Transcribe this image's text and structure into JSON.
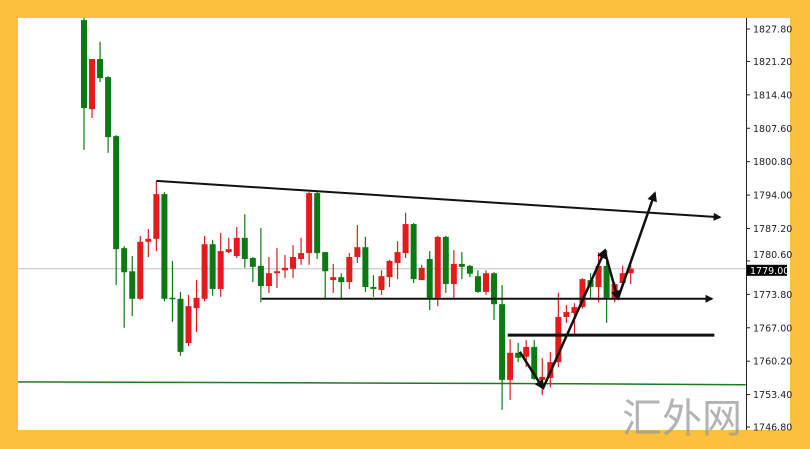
{
  "chart_data": {
    "type": "candlestick",
    "title": "",
    "xlabel": "",
    "ylabel": "",
    "ylim": [
      1745.5,
      1830.0
    ],
    "grid": false,
    "y_ticks": [
      "1827.80",
      "1821.20",
      "1814.40",
      "1807.60",
      "1800.80",
      "1794.00",
      "1787.20",
      "1780.60",
      "1773.80",
      "1767.00",
      "1760.20",
      "1753.40",
      "1746.80"
    ],
    "current_price": "1779.00",
    "colors": {
      "up": "#e31b1b",
      "down": "#0c7a12",
      "frame": "#FCBF3E",
      "level_line": "#1f7a1f",
      "current_line": "#c0c0c0",
      "annotation": "#111111"
    },
    "ohlc": [
      [
        1829.6,
        1831.0,
        1803.2,
        1811.7
      ],
      [
        1811.5,
        1821.7,
        1809.7,
        1821.7
      ],
      [
        1821.7,
        1825.2,
        1817.0,
        1817.8
      ],
      [
        1818.0,
        1818.2,
        1802.6,
        1805.8
      ],
      [
        1806.0,
        1806.2,
        1775.7,
        1783.0
      ],
      [
        1783.2,
        1783.6,
        1767.0,
        1778.3
      ],
      [
        1778.5,
        1781.6,
        1769.4,
        1772.9
      ],
      [
        1772.9,
        1785.7,
        1772.7,
        1784.5
      ],
      [
        1784.5,
        1787.1,
        1781.4,
        1785.1
      ],
      [
        1785.1,
        1796.9,
        1782.6,
        1794.2
      ],
      [
        1794.2,
        1794.6,
        1772.4,
        1772.9
      ],
      [
        1773.1,
        1780.6,
        1768.2,
        1772.9
      ],
      [
        1772.9,
        1774.3,
        1761.3,
        1762.1
      ],
      [
        1763.9,
        1773.7,
        1763.3,
        1771.4
      ],
      [
        1771.0,
        1776.7,
        1766.1,
        1773.1
      ],
      [
        1772.9,
        1785.7,
        1772.4,
        1784.0
      ],
      [
        1784.0,
        1784.9,
        1773.5,
        1774.9
      ],
      [
        1774.9,
        1786.3,
        1773.3,
        1782.6
      ],
      [
        1782.4,
        1785.3,
        1782.2,
        1783.0
      ],
      [
        1781.6,
        1787.5,
        1781.2,
        1785.3
      ],
      [
        1785.3,
        1790.1,
        1779.2,
        1781.0
      ],
      [
        1781.2,
        1781.4,
        1776.3,
        1779.4
      ],
      [
        1779.6,
        1787.3,
        1772.2,
        1775.5
      ],
      [
        1775.5,
        1781.4,
        1774.1,
        1778.1
      ],
      [
        1778.1,
        1783.2,
        1775.1,
        1778.5
      ],
      [
        1778.7,
        1781.8,
        1777.1,
        1779.2
      ],
      [
        1779.0,
        1783.8,
        1777.1,
        1781.4
      ],
      [
        1781.0,
        1785.3,
        1779.8,
        1782.2
      ],
      [
        1782.2,
        1794.6,
        1779.8,
        1794.4
      ],
      [
        1794.4,
        1794.6,
        1781.0,
        1782.2
      ],
      [
        1782.4,
        1782.4,
        1772.9,
        1778.5
      ],
      [
        1776.7,
        1780.0,
        1774.1,
        1777.3
      ],
      [
        1777.3,
        1778.1,
        1772.7,
        1776.3
      ],
      [
        1776.3,
        1782.2,
        1774.9,
        1781.4
      ],
      [
        1781.4,
        1787.9,
        1780.2,
        1783.4
      ],
      [
        1783.4,
        1785.5,
        1774.3,
        1775.3
      ],
      [
        1775.3,
        1777.7,
        1773.3,
        1774.9
      ],
      [
        1774.7,
        1778.7,
        1773.7,
        1777.5
      ],
      [
        1777.3,
        1780.8,
        1775.3,
        1780.6
      ],
      [
        1780.2,
        1784.6,
        1776.9,
        1782.4
      ],
      [
        1782.2,
        1790.4,
        1781.2,
        1788.1
      ],
      [
        1788.1,
        1788.3,
        1776.1,
        1776.9
      ],
      [
        1776.7,
        1779.8,
        1776.7,
        1779.2
      ],
      [
        1781.0,
        1782.6,
        1770.6,
        1773.1
      ],
      [
        1773.1,
        1785.7,
        1771.4,
        1785.5
      ],
      [
        1785.5,
        1785.7,
        1774.1,
        1775.9
      ],
      [
        1775.9,
        1782.8,
        1773.1,
        1780.0
      ],
      [
        1780.0,
        1782.4,
        1776.9,
        1779.4
      ],
      [
        1779.6,
        1779.8,
        1777.3,
        1778.0
      ],
      [
        1777.5,
        1778.7,
        1774.1,
        1774.3
      ],
      [
        1774.3,
        1778.7,
        1773.7,
        1778.1
      ],
      [
        1778.1,
        1778.3,
        1768.6,
        1771.8
      ],
      [
        1771.8,
        1775.7,
        1750.3,
        1756.4
      ],
      [
        1756.4,
        1764.7,
        1752.3,
        1761.9
      ],
      [
        1761.9,
        1763.9,
        1760.0,
        1760.9
      ],
      [
        1761.1,
        1764.5,
        1759.0,
        1763.1
      ],
      [
        1763.1,
        1764.5,
        1756.4,
        1756.6
      ],
      [
        1756.4,
        1760.8,
        1753.3,
        1757.0
      ],
      [
        1756.8,
        1762.1,
        1754.9,
        1760.0
      ],
      [
        1760.0,
        1774.1,
        1759.0,
        1769.2
      ],
      [
        1769.2,
        1771.6,
        1768.0,
        1770.2
      ],
      [
        1770.0,
        1772.0,
        1765.5,
        1771.2
      ],
      [
        1771.2,
        1777.1,
        1770.9,
        1776.9
      ],
      [
        1776.7,
        1778.1,
        1773.1,
        1775.3
      ],
      [
        1775.3,
        1782.4,
        1772.2,
        1779.6
      ],
      [
        1779.6,
        1782.8,
        1768.0,
        1773.1
      ],
      [
        1773.1,
        1776.3,
        1772.2,
        1775.9
      ],
      [
        1776.1,
        1779.6,
        1775.3,
        1778.1
      ],
      [
        1778.1,
        1779.8,
        1775.9,
        1779.0
      ]
    ],
    "annotations": [
      {
        "kind": "trendline-arrow",
        "from": [
          9,
          1796.9
        ],
        "to": [
          79.1,
          1789.5
        ]
      },
      {
        "kind": "horizontal-arrow",
        "from": [
          22.1,
          1772.9
        ],
        "to": [
          78.1,
          1772.9
        ]
      },
      {
        "kind": "horizontal-line",
        "from": [
          52.7,
          1765.5
        ],
        "to": [
          78.4,
          1765.5
        ]
      },
      {
        "kind": "level-line",
        "points": [
          [
            -8.2,
            1756.0
          ],
          [
            61,
            1755.6
          ],
          [
            82.3,
            1755.4
          ]
        ]
      },
      {
        "kind": "arrow",
        "from": [
          54.2,
          1762.1
        ],
        "to": [
          57.1,
          1754.7
        ]
      },
      {
        "kind": "arrow",
        "from": [
          57.1,
          1754.7
        ],
        "to": [
          64.8,
          1782.8
        ]
      },
      {
        "kind": "arrow",
        "from": [
          64.8,
          1782.4
        ],
        "to": [
          66.4,
          1772.9
        ]
      },
      {
        "kind": "arrow",
        "from": [
          66.4,
          1772.9
        ],
        "to": [
          71.0,
          1794.4
        ]
      }
    ]
  },
  "watermark": "汇外网"
}
